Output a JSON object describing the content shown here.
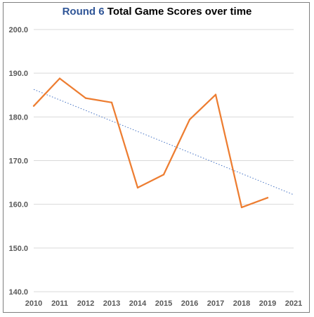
{
  "chart_data": {
    "type": "line",
    "title_accent": "Round 6",
    "title_rest": "Total Game Scores over time",
    "xlabel": "",
    "ylabel": "",
    "x_ticks": [
      "2010",
      "2011",
      "2012",
      "2013",
      "2014",
      "2015",
      "2016",
      "2017",
      "2018",
      "2019",
      "2021"
    ],
    "y_ticks": [
      "140.0",
      "150.0",
      "160.0",
      "170.0",
      "180.0",
      "190.0",
      "200.0"
    ],
    "ylim": [
      140,
      200
    ],
    "grid": true,
    "series": [
      {
        "x": [
          "2010",
          "2011",
          "2012",
          "2013",
          "2014",
          "2015",
          "2016",
          "2017",
          "2018",
          "2019"
        ],
        "values": [
          182.5,
          188.8,
          184.3,
          183.3,
          163.8,
          166.8,
          179.4,
          185.1,
          159.3,
          161.5
        ],
        "color": "#ed7d31"
      }
    ],
    "trendline": {
      "style": "dotted",
      "color": "#4472c4",
      "start": {
        "x": "2010",
        "y": 186.3
      },
      "end": {
        "x": "2021",
        "y": 162.2
      }
    }
  }
}
